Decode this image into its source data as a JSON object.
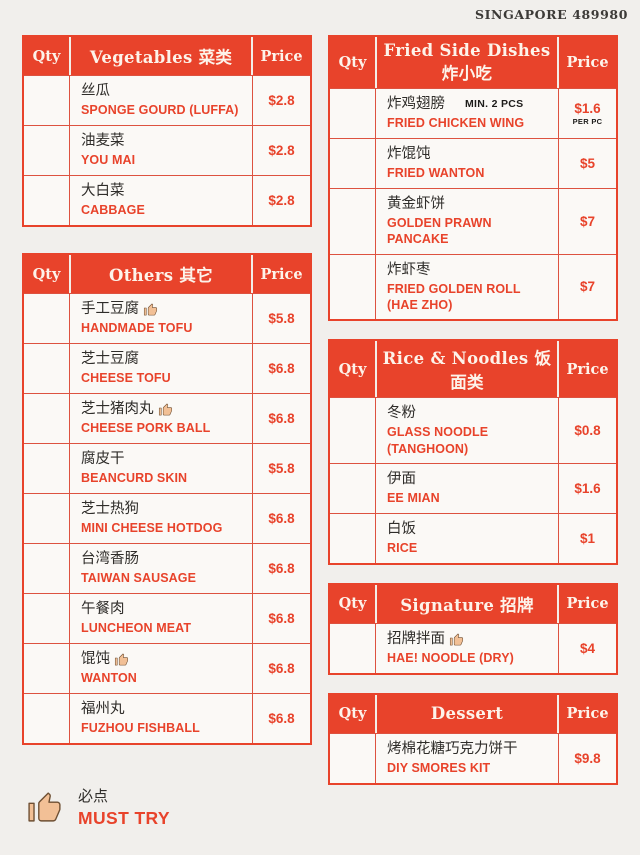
{
  "page": {
    "location": "SINGAPORE 489980"
  },
  "labels": {
    "qty": "Qty",
    "price": "Price"
  },
  "colors": {
    "accent": "#e8432b",
    "grid_border": "#dd5240",
    "ink": "#2f2d2a",
    "paper": "#f1efec",
    "header_text": "#fdf3ea"
  },
  "icons": {
    "must_try": "thumbs-up-icon"
  },
  "legend": {
    "zh": "必点",
    "en": "MUST TRY"
  },
  "tables": {
    "left": [
      {
        "title": "Vegetables 菜类",
        "items": [
          {
            "zh": "丝瓜",
            "en": "SPONGE GOURD (LUFFA)",
            "price": "$2.8"
          },
          {
            "zh": "油麦菜",
            "en": "YOU MAI",
            "price": "$2.8"
          },
          {
            "zh": "大白菜",
            "en": "CABBAGE",
            "price": "$2.8"
          }
        ]
      },
      {
        "title": "Others 其它",
        "items": [
          {
            "zh": "手工豆腐",
            "must_try": true,
            "en": "HANDMADE TOFU",
            "price": "$5.8"
          },
          {
            "zh": "芝士豆腐",
            "en": "CHEESE TOFU",
            "price": "$6.8"
          },
          {
            "zh": "芝士猪肉丸",
            "must_try": true,
            "en": "CHEESE PORK BALL",
            "price": "$6.8"
          },
          {
            "zh": "腐皮干",
            "en": "BEANCURD SKIN",
            "price": "$5.8"
          },
          {
            "zh": "芝士热狗",
            "en": "MINI CHEESE HOTDOG",
            "price": "$6.8"
          },
          {
            "zh": "台湾香肠",
            "en": "TAIWAN SAUSAGE",
            "price": "$6.8"
          },
          {
            "zh": "午餐肉",
            "en": "LUNCHEON MEAT",
            "price": "$6.8"
          },
          {
            "zh": "馄饨",
            "must_try": true,
            "en": "WANTON",
            "price": "$6.8"
          },
          {
            "zh": "福州丸",
            "en": "FUZHOU FISHBALL",
            "price": "$6.8"
          }
        ]
      }
    ],
    "right": [
      {
        "title": "Fried Side Dishes 炸小吃",
        "items": [
          {
            "zh": "炸鸡翅膀",
            "note": "MIN. 2 PCS",
            "en": "FRIED CHICKEN WING",
            "price": "$1.6",
            "price_note": "PER PC"
          },
          {
            "zh": "炸馄饨",
            "en": "FRIED WANTON",
            "price": "$5"
          },
          {
            "zh": "黄金虾饼",
            "en": "GOLDEN PRAWN PANCAKE",
            "price": "$7"
          },
          {
            "zh": "炸虾枣",
            "en": "FRIED GOLDEN ROLL (HAE ZHO)",
            "price": "$7"
          }
        ]
      },
      {
        "title": "Rice & Noodles 饭面类",
        "items": [
          {
            "zh": "冬粉",
            "en": "GLASS NOODLE (TANGHOON)",
            "price": "$0.8"
          },
          {
            "zh": "伊面",
            "en": "EE MIAN",
            "price": "$1.6"
          },
          {
            "zh": "白饭",
            "en": "RICE",
            "price": "$1"
          }
        ]
      },
      {
        "title": "Signature 招牌",
        "items": [
          {
            "zh": "招牌拌面",
            "must_try": true,
            "en": "HAE! NOODLE (DRY)",
            "price": "$4"
          }
        ]
      },
      {
        "title": "Dessert",
        "items": [
          {
            "zh": "烤棉花糖巧克力饼干",
            "en": "DIY SMORES KIT",
            "price": "$9.8"
          }
        ]
      }
    ]
  }
}
